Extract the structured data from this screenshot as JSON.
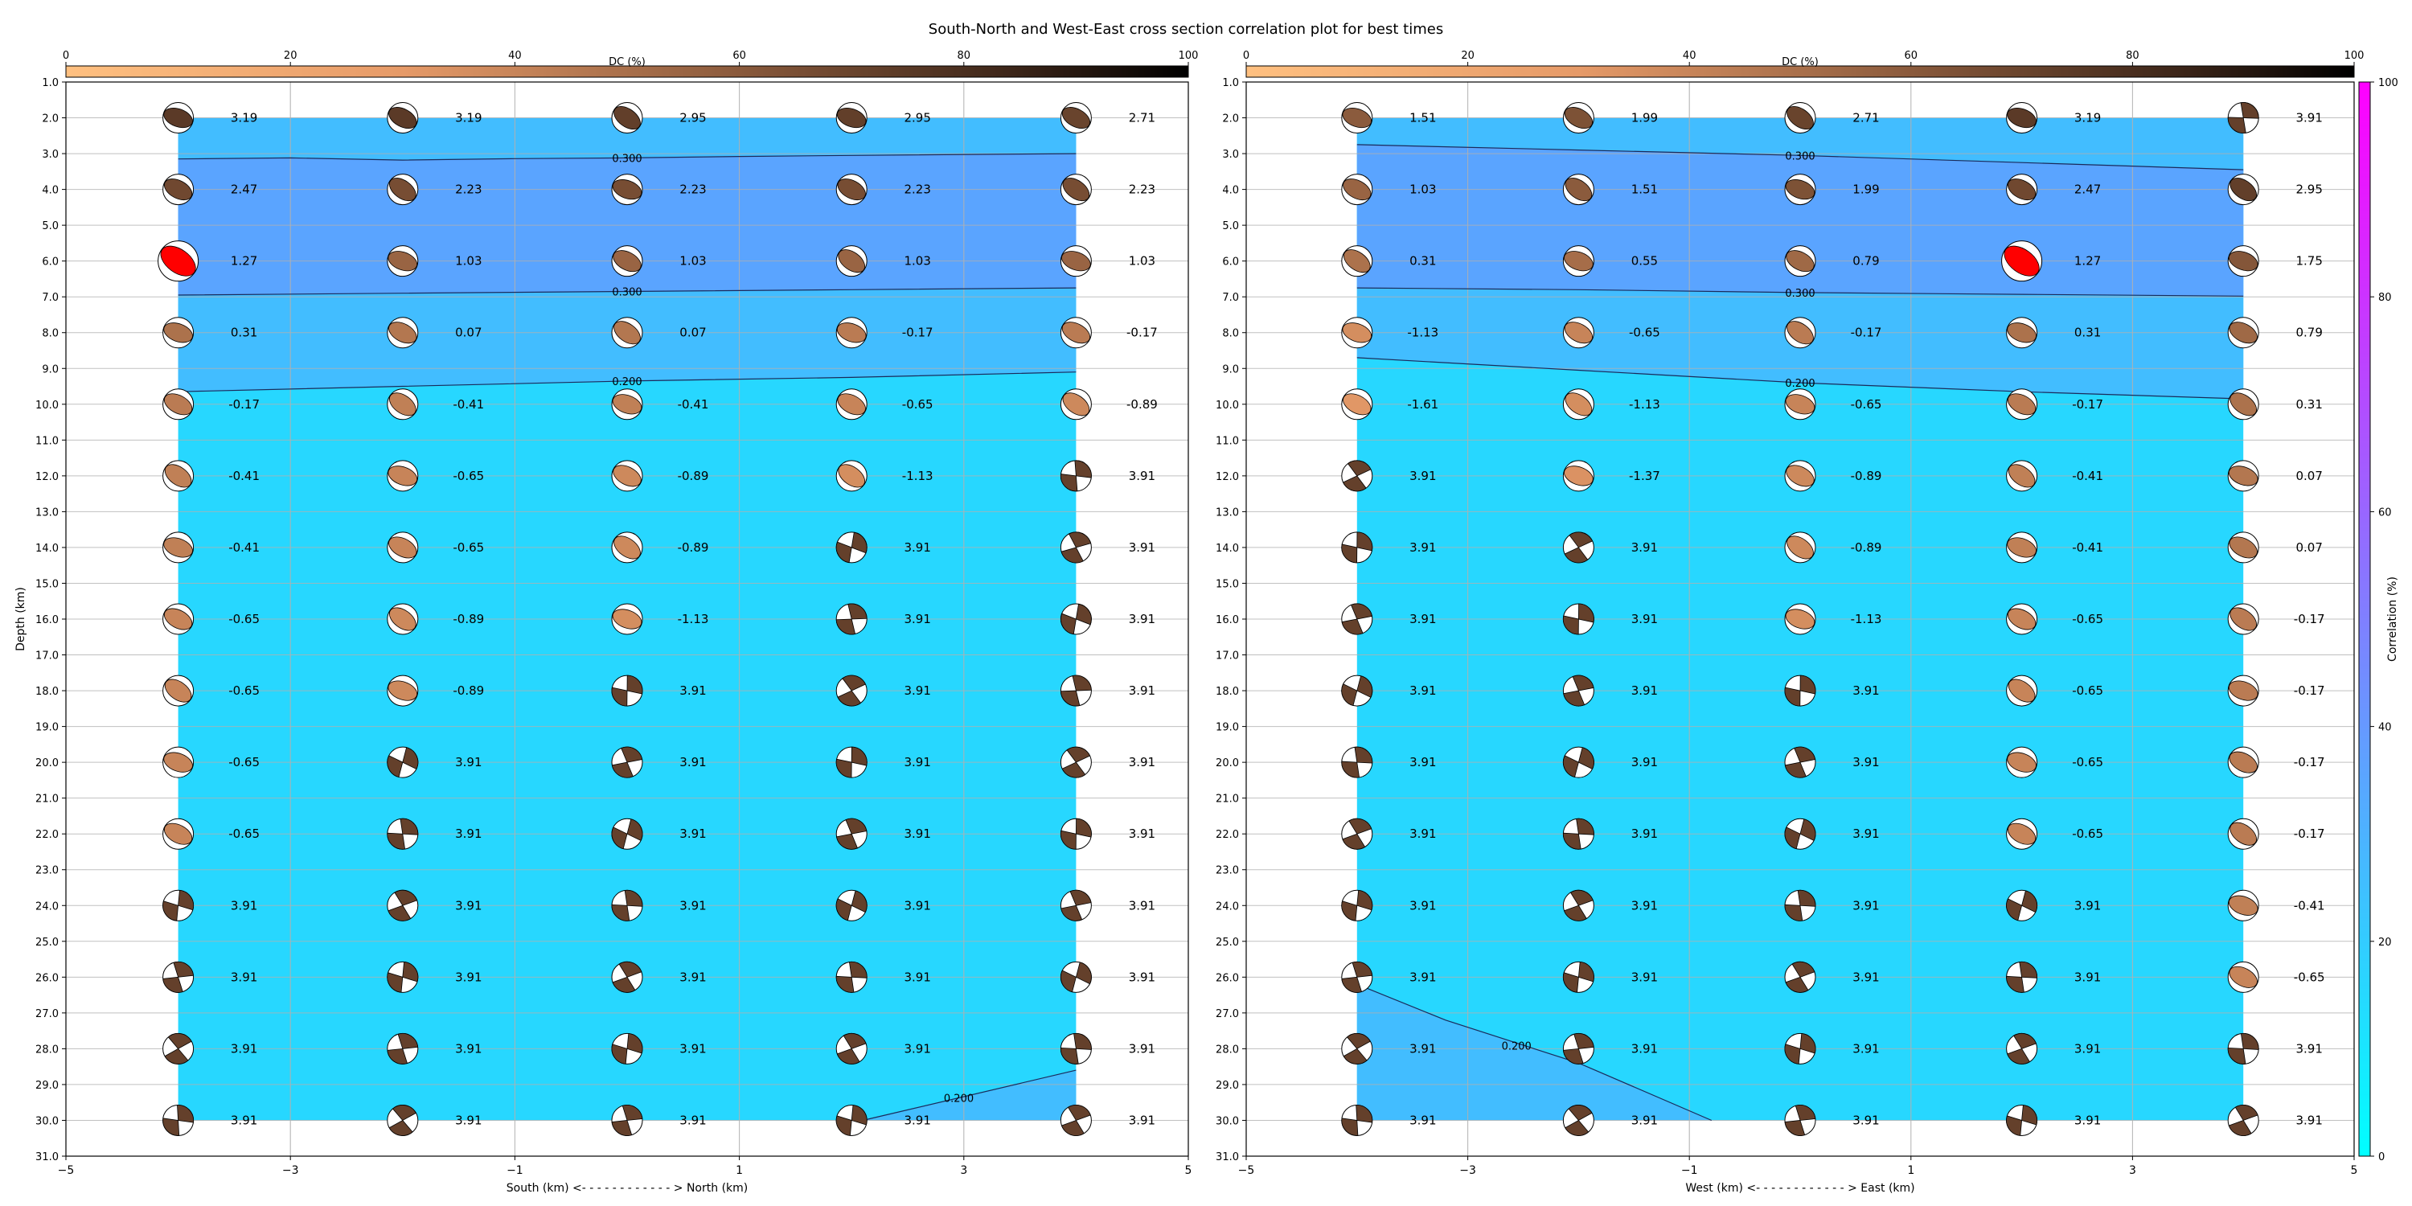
{
  "figure": {
    "title": "South-North and West-East cross section correlation plot for best times"
  },
  "colors": {
    "corr_low": "#00ffff",
    "corr_high": "#ff00ff",
    "dc_low": "#ffc080",
    "dc_high": "#000000",
    "best_solution": "#ff0000"
  },
  "dc_colorbar": {
    "label": "DC (%)",
    "ticks": [
      0,
      20,
      40,
      60,
      80,
      100
    ]
  },
  "corr_colorbar": {
    "label": "Correlation (%)",
    "ticks": [
      0,
      20,
      40,
      60,
      80,
      100
    ]
  },
  "chart_data": [
    {
      "type": "heatmap",
      "title": "",
      "xlabel": "South (km) <- - - - - - - - - - - - > North (km)",
      "ylabel": "Depth (km)",
      "xlim": [
        -5,
        5
      ],
      "ylim": [
        31,
        1
      ],
      "xticks": [
        "−5",
        "−3",
        "−1",
        "1",
        "3",
        "5"
      ],
      "yticks": [
        "1.0",
        "2.0",
        "3.0",
        "4.0",
        "5.0",
        "6.0",
        "7.0",
        "8.0",
        "9.0",
        "10.0",
        "11.0",
        "12.0",
        "13.0",
        "14.0",
        "15.0",
        "16.0",
        "17.0",
        "18.0",
        "19.0",
        "20.0",
        "21.0",
        "22.0",
        "23.0",
        "24.0",
        "25.0",
        "26.0",
        "27.0",
        "28.0",
        "29.0",
        "30.0",
        "31.0"
      ],
      "grid": true,
      "x": [
        -4,
        -2,
        0,
        2,
        4
      ],
      "depths": [
        2,
        4,
        6,
        8,
        10,
        12,
        14,
        16,
        18,
        20,
        22,
        24,
        26,
        28,
        30
      ],
      "correlation_fill": {
        "x_extent": [
          -4,
          4
        ],
        "depth_extent": [
          2,
          30
        ],
        "bands": [
          {
            "name": "<0.2",
            "color": "#27d7ff"
          },
          {
            "name": "0.2-0.3",
            "color": "#42bdff"
          },
          {
            "name": ">0.3",
            "color": "#5aa4ff"
          }
        ],
        "contours": [
          {
            "label": "0.300",
            "points": [
              [
                -4,
                3.15
              ],
              [
                -3,
                3.12
              ],
              [
                -2,
                3.18
              ],
              [
                -1,
                3.14
              ],
              [
                0,
                3.12
              ],
              [
                1,
                3.08
              ],
              [
                2,
                3.05
              ],
              [
                4,
                3.0
              ]
            ]
          },
          {
            "label": "0.300",
            "points": [
              [
                -4,
                6.95
              ],
              [
                -2,
                6.9
              ],
              [
                0,
                6.85
              ],
              [
                2,
                6.8
              ],
              [
                4,
                6.75
              ]
            ]
          },
          {
            "label": "0.200",
            "points": [
              [
                -4,
                9.65
              ],
              [
                -2,
                9.5
              ],
              [
                0,
                9.35
              ],
              [
                2,
                9.25
              ],
              [
                4,
                9.1
              ]
            ]
          },
          {
            "label": "0.200",
            "points": [
              [
                2.1,
                30.0
              ],
              [
                4,
                28.6
              ]
            ]
          }
        ],
        "extra_regions": [
          {
            "band": "0.2-0.3",
            "points": [
              [
                2.1,
                30.0
              ],
              [
                4,
                28.6
              ],
              [
                4,
                30.0
              ]
            ]
          }
        ],
        "bands_above": [
          {
            "band": "0.2-0.3",
            "from": "top",
            "to_contour": 0
          },
          {
            "band": ">0.3",
            "from_contour": 0,
            "to_contour": 1
          },
          {
            "band": "0.2-0.3",
            "from_contour": 1,
            "to_contour": 2
          }
        ]
      },
      "labels": [
        [
          "3.19",
          "3.19",
          "2.95",
          "2.95",
          "2.71"
        ],
        [
          "2.47",
          "2.23",
          "2.23",
          "2.23",
          "2.23"
        ],
        [
          "1.27",
          "1.03",
          "1.03",
          "1.03",
          "1.03"
        ],
        [
          "0.31",
          "0.07",
          "0.07",
          "-0.17",
          "-0.17"
        ],
        [
          "-0.17",
          "-0.41",
          "-0.41",
          "-0.65",
          "-0.89"
        ],
        [
          "-0.41",
          "-0.65",
          "-0.89",
          "-1.13",
          "3.91"
        ],
        [
          "-0.41",
          "-0.65",
          "-0.89",
          "3.91",
          "3.91"
        ],
        [
          "-0.65",
          "-0.89",
          "-1.13",
          "3.91",
          "3.91"
        ],
        [
          "-0.65",
          "-0.89",
          "3.91",
          "3.91",
          "3.91"
        ],
        [
          "-0.65",
          "3.91",
          "3.91",
          "3.91",
          "3.91"
        ],
        [
          "-0.65",
          "3.91",
          "3.91",
          "3.91",
          "3.91"
        ],
        [
          "3.91",
          "3.91",
          "3.91",
          "3.91",
          "3.91"
        ],
        [
          "3.91",
          "3.91",
          "3.91",
          "3.91",
          "3.91"
        ],
        [
          "3.91",
          "3.91",
          "3.91",
          "3.91",
          "3.91"
        ],
        [
          "3.91",
          "3.91",
          "3.91",
          "3.91",
          "3.91"
        ]
      ],
      "best": [
        2,
        0
      ]
    },
    {
      "type": "heatmap",
      "title": "",
      "xlabel": "West (km) <- - - - - - - - - - - - > East (km)",
      "ylabel": "",
      "xlim": [
        -5,
        5
      ],
      "ylim": [
        31,
        1
      ],
      "xticks": [
        "−5",
        "−3",
        "−1",
        "1",
        "3",
        "5"
      ],
      "yticks": [
        "1.0",
        "2.0",
        "3.0",
        "4.0",
        "5.0",
        "6.0",
        "7.0",
        "8.0",
        "9.0",
        "10.0",
        "11.0",
        "12.0",
        "13.0",
        "14.0",
        "15.0",
        "16.0",
        "17.0",
        "18.0",
        "19.0",
        "20.0",
        "21.0",
        "22.0",
        "23.0",
        "24.0",
        "25.0",
        "26.0",
        "27.0",
        "28.0",
        "29.0",
        "30.0",
        "31.0"
      ],
      "grid": true,
      "x": [
        -4,
        -2,
        0,
        2,
        4
      ],
      "depths": [
        2,
        4,
        6,
        8,
        10,
        12,
        14,
        16,
        18,
        20,
        22,
        24,
        26,
        28,
        30
      ],
      "correlation_fill": {
        "x_extent": [
          -4,
          4
        ],
        "depth_extent": [
          2,
          30
        ],
        "bands": [
          {
            "name": "<0.2",
            "color": "#27d7ff"
          },
          {
            "name": "0.2-0.3",
            "color": "#42bdff"
          },
          {
            "name": ">0.3",
            "color": "#5aa4ff"
          }
        ],
        "contours": [
          {
            "label": "0.300",
            "points": [
              [
                -4,
                2.75
              ],
              [
                -2,
                2.9
              ],
              [
                0,
                3.05
              ],
              [
                2,
                3.25
              ],
              [
                4,
                3.45
              ]
            ]
          },
          {
            "label": "0.300",
            "points": [
              [
                -4,
                6.75
              ],
              [
                -2,
                6.8
              ],
              [
                0,
                6.88
              ],
              [
                2,
                6.93
              ],
              [
                4,
                6.98
              ]
            ]
          },
          {
            "label": "0.200",
            "points": [
              [
                -4,
                8.7
              ],
              [
                -2,
                9.05
              ],
              [
                0,
                9.4
              ],
              [
                2,
                9.65
              ],
              [
                4,
                9.85
              ]
            ]
          },
          {
            "label": "0.200",
            "points": [
              [
                -4,
                26.2
              ],
              [
                -3.2,
                27.2
              ],
              [
                -2,
                28.4
              ],
              [
                -0.8,
                30.0
              ]
            ]
          }
        ],
        "extra_regions": [
          {
            "band": "0.2-0.3",
            "points": [
              [
                -4,
                26.2
              ],
              [
                -3.2,
                27.2
              ],
              [
                -2,
                28.4
              ],
              [
                -0.8,
                30.0
              ],
              [
                -4,
                30.0
              ]
            ]
          }
        ],
        "bands_above": [
          {
            "band": "0.2-0.3",
            "from": "top",
            "to_contour": 0
          },
          {
            "band": ">0.3",
            "from_contour": 0,
            "to_contour": 1
          },
          {
            "band": "0.2-0.3",
            "from_contour": 1,
            "to_contour": 2
          }
        ]
      },
      "labels": [
        [
          "1.51",
          "1.99",
          "2.71",
          "3.19",
          "3.91"
        ],
        [
          "1.03",
          "1.51",
          "1.99",
          "2.47",
          "2.95"
        ],
        [
          "0.31",
          "0.55",
          "0.79",
          "1.27",
          "1.75"
        ],
        [
          "-1.13",
          "-0.65",
          "-0.17",
          "0.31",
          "0.79"
        ],
        [
          "-1.61",
          "-1.13",
          "-0.65",
          "-0.17",
          "0.31"
        ],
        [
          "3.91",
          "-1.37",
          "-0.89",
          "-0.41",
          "0.07"
        ],
        [
          "3.91",
          "3.91",
          "-0.89",
          "-0.41",
          "0.07"
        ],
        [
          "3.91",
          "3.91",
          "-1.13",
          "-0.65",
          "-0.17"
        ],
        [
          "3.91",
          "3.91",
          "3.91",
          "-0.65",
          "-0.17"
        ],
        [
          "3.91",
          "3.91",
          "3.91",
          "-0.65",
          "-0.17"
        ],
        [
          "3.91",
          "3.91",
          "3.91",
          "-0.65",
          "-0.17"
        ],
        [
          "3.91",
          "3.91",
          "3.91",
          "3.91",
          "-0.41"
        ],
        [
          "3.91",
          "3.91",
          "3.91",
          "3.91",
          "-0.65"
        ],
        [
          "3.91",
          "3.91",
          "3.91",
          "3.91",
          "3.91"
        ],
        [
          "3.91",
          "3.91",
          "3.91",
          "3.91",
          "3.91"
        ]
      ],
      "best": [
        2,
        3
      ]
    }
  ]
}
